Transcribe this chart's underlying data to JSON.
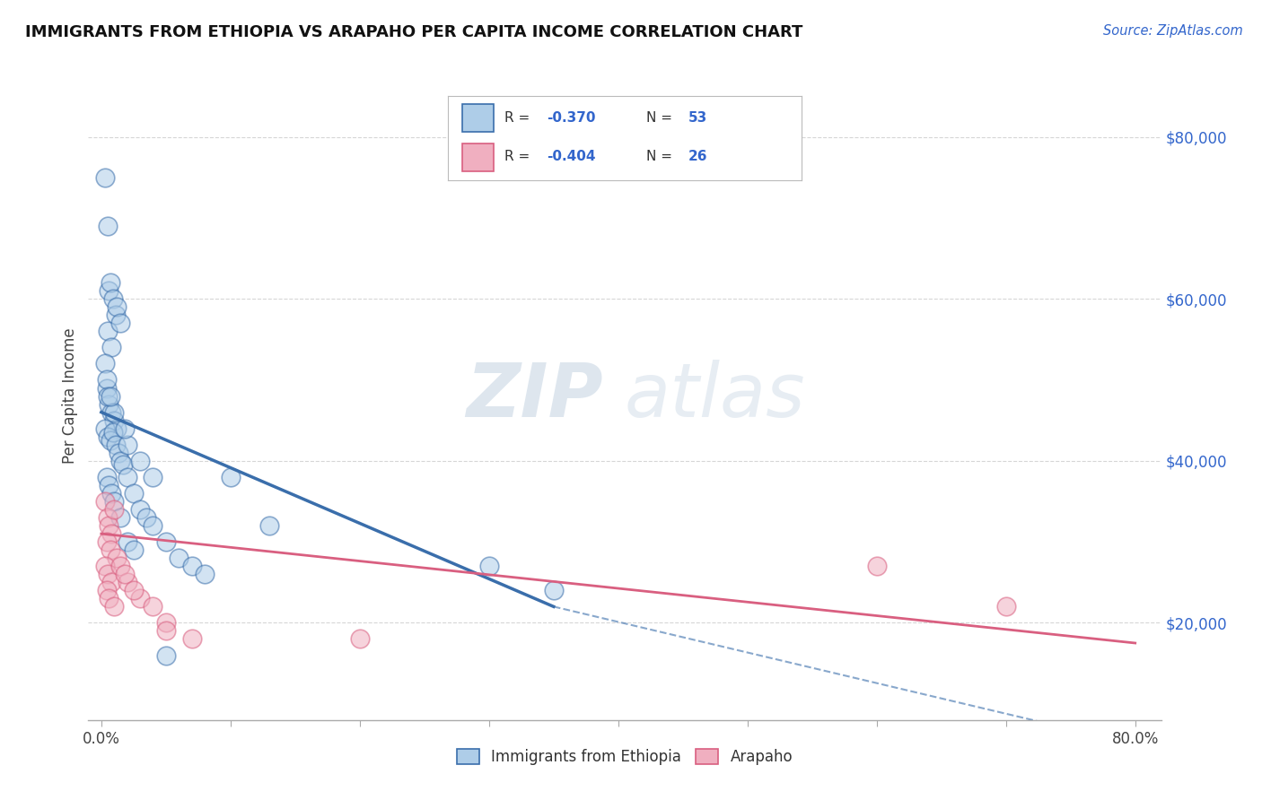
{
  "title": "IMMIGRANTS FROM ETHIOPIA VS ARAPAHO PER CAPITA INCOME CORRELATION CHART",
  "source": "Source: ZipAtlas.com",
  "ylabel": "Per Capita Income",
  "yticks": [
    20000,
    40000,
    60000,
    80000
  ],
  "ytick_labels": [
    "$20,000",
    "$40,000",
    "$60,000",
    "$80,000"
  ],
  "legend_entries": [
    {
      "label": "Immigrants from Ethiopia",
      "R": -0.37,
      "N": 53,
      "color": "#aecde8",
      "line_color": "#3a6eab"
    },
    {
      "label": "Arapaho",
      "R": -0.404,
      "N": 26,
      "color": "#f0afc0",
      "line_color": "#d95f80"
    }
  ],
  "background_color": "#ffffff",
  "grid_color": "#cccccc",
  "watermark_zip": "ZIP",
  "watermark_atlas": "atlas",
  "blue_scatter": [
    [
      0.3,
      75000
    ],
    [
      0.5,
      69000
    ],
    [
      0.6,
      61000
    ],
    [
      0.7,
      62000
    ],
    [
      0.9,
      60000
    ],
    [
      1.1,
      58000
    ],
    [
      1.2,
      59000
    ],
    [
      0.5,
      56000
    ],
    [
      0.8,
      54000
    ],
    [
      1.5,
      57000
    ],
    [
      0.4,
      49000
    ],
    [
      0.6,
      47000
    ],
    [
      0.8,
      46000
    ],
    [
      1.0,
      45000
    ],
    [
      1.2,
      44000
    ],
    [
      0.3,
      44000
    ],
    [
      0.5,
      43000
    ],
    [
      0.7,
      42500
    ],
    [
      0.9,
      43500
    ],
    [
      1.1,
      42000
    ],
    [
      1.3,
      41000
    ],
    [
      1.5,
      40000
    ],
    [
      1.7,
      39500
    ],
    [
      0.4,
      38000
    ],
    [
      0.6,
      37000
    ],
    [
      0.8,
      36000
    ],
    [
      2.0,
      38000
    ],
    [
      2.5,
      36000
    ],
    [
      3.0,
      34000
    ],
    [
      3.5,
      33000
    ],
    [
      4.0,
      32000
    ],
    [
      5.0,
      30000
    ],
    [
      6.0,
      28000
    ],
    [
      7.0,
      27000
    ],
    [
      8.0,
      26000
    ],
    [
      2.0,
      42000
    ],
    [
      3.0,
      40000
    ],
    [
      4.0,
      38000
    ],
    [
      10.0,
      38000
    ],
    [
      13.0,
      32000
    ],
    [
      30.0,
      27000
    ],
    [
      35.0,
      24000
    ],
    [
      1.0,
      35000
    ],
    [
      1.5,
      33000
    ],
    [
      2.0,
      30000
    ],
    [
      2.5,
      29000
    ],
    [
      0.3,
      52000
    ],
    [
      0.4,
      50000
    ],
    [
      0.5,
      48000
    ],
    [
      5.0,
      16000
    ],
    [
      1.8,
      44000
    ],
    [
      1.0,
      46000
    ],
    [
      0.7,
      48000
    ]
  ],
  "pink_scatter": [
    [
      0.3,
      35000
    ],
    [
      0.5,
      33000
    ],
    [
      0.6,
      32000
    ],
    [
      0.8,
      31000
    ],
    [
      1.0,
      34000
    ],
    [
      0.4,
      30000
    ],
    [
      0.7,
      29000
    ],
    [
      1.2,
      28000
    ],
    [
      0.3,
      27000
    ],
    [
      0.5,
      26000
    ],
    [
      0.8,
      25000
    ],
    [
      1.5,
      27000
    ],
    [
      0.4,
      24000
    ],
    [
      0.6,
      23000
    ],
    [
      1.0,
      22000
    ],
    [
      2.0,
      25000
    ],
    [
      3.0,
      23000
    ],
    [
      4.0,
      22000
    ],
    [
      5.0,
      20000
    ],
    [
      1.8,
      26000
    ],
    [
      2.5,
      24000
    ],
    [
      60.0,
      27000
    ],
    [
      70.0,
      22000
    ],
    [
      5.0,
      19000
    ],
    [
      7.0,
      18000
    ],
    [
      20.0,
      18000
    ]
  ],
  "blue_line_x": [
    0.0,
    35.0
  ],
  "blue_line_y": [
    46000,
    22000
  ],
  "pink_line_x": [
    0.0,
    80.0
  ],
  "pink_line_y": [
    31000,
    17500
  ],
  "dashed_line_x": [
    35.0,
    80.0
  ],
  "dashed_line_y": [
    22000,
    5000
  ],
  "xlim": [
    -1.0,
    82.0
  ],
  "ylim": [
    8000,
    88000
  ],
  "xtick_positions": [
    0,
    10,
    20,
    30,
    40,
    50,
    60,
    70,
    80
  ],
  "xtick_labels": [
    "0.0%",
    "",
    "",
    "",
    "",
    "",
    "",
    "",
    "80.0%"
  ]
}
